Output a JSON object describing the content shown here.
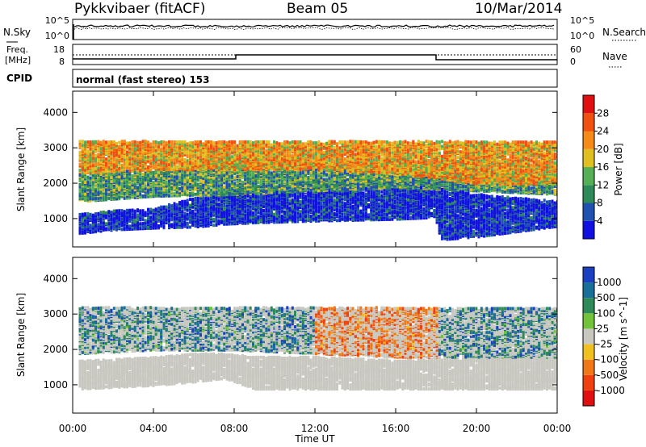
{
  "header": {
    "station": "Pykkvibaer (fitACF)",
    "beam": "Beam 05",
    "date": "10/Mar/2014"
  },
  "top_panels": {
    "nsky": {
      "label": "N.Sky",
      "ticks": [
        "10^5",
        "10^0"
      ]
    },
    "nsearch": {
      "label": "N.Search",
      "ticks": [
        "10^5",
        "10^0"
      ]
    },
    "freq": {
      "label_line1": "Freq.",
      "label_line2": "[MHz]",
      "ticks": [
        "18",
        "8"
      ]
    },
    "nave": {
      "label": "Nave",
      "ticks": [
        "60",
        "0"
      ]
    },
    "cpid": {
      "label": "CPID",
      "mode": "normal (fast stereo) 153"
    }
  },
  "chart_data": [
    {
      "type": "heatmap",
      "title": "",
      "panel": "power",
      "xlabel": "Time UT",
      "ylabel": "Slant Range [km]",
      "xlim": [
        0,
        24
      ],
      "ylim": [
        200,
        4600
      ],
      "y_ticks": [
        1000,
        2000,
        3000,
        4000
      ],
      "x_ticks": [
        "00:00",
        "04:00",
        "08:00",
        "12:00",
        "16:00",
        "20:00",
        "00:00"
      ],
      "colorbar": {
        "label": "Power [dB]",
        "ticks": [
          "4",
          "8",
          "12",
          "16",
          "20",
          "24",
          "28"
        ],
        "colors": [
          "#1010e0",
          "#2050b0",
          "#2e8b57",
          "#55b055",
          "#e0c020",
          "#f58a18",
          "#f05010",
          "#e01010"
        ]
      },
      "scatter_bands": [
        {
          "name": "low",
          "x": [
            0.3,
            2,
            4,
            6,
            7.5,
            9,
            12,
            16,
            17.9,
            18.2,
            20,
            22,
            24
          ],
          "lower": [
            600,
            700,
            750,
            780,
            860,
            900,
            950,
            1000,
            1050,
            420,
            500,
            650,
            800
          ],
          "upper": [
            1150,
            1250,
            1300,
            1600,
            1800,
            1900,
            2100,
            2200,
            2300,
            1900,
            1700,
            1600,
            1500
          ],
          "level": 0.92
        },
        {
          "name": "mid",
          "x": [
            0.3,
            4,
            8,
            12,
            16,
            20,
            24
          ],
          "lower": [
            1500,
            1650,
            1700,
            1800,
            1900,
            1800,
            1700
          ],
          "upper": [
            2300,
            2400,
            2700,
            2600,
            2600,
            2400,
            2200
          ],
          "level": 0.65
        },
        {
          "name": "high",
          "x": [
            0.3,
            4,
            8,
            12,
            16,
            20,
            24
          ],
          "lower": [
            2300,
            2400,
            2400,
            2400,
            2300,
            2000,
            2000
          ],
          "upper": [
            3200,
            3200,
            3200,
            3200,
            3200,
            3200,
            3200
          ],
          "level": 0.35
        }
      ]
    },
    {
      "type": "heatmap",
      "title": "",
      "panel": "velocity",
      "xlabel": "Time UT",
      "ylabel": "Slant Range [km]",
      "xlim": [
        0,
        24
      ],
      "ylim": [
        200,
        4600
      ],
      "y_ticks": [
        1000,
        2000,
        3000,
        4000
      ],
      "x_ticks": [
        "00:00",
        "04:00",
        "08:00",
        "12:00",
        "16:00",
        "20:00",
        "00:00"
      ],
      "colorbar": {
        "label": "Velocity [m s^-1]",
        "ticks": [
          "1000",
          "500",
          "100",
          "25",
          "-25",
          "-100",
          "-500",
          "-1000"
        ],
        "colors": [
          "#1a3fc0",
          "#1a6e9a",
          "#2e8b57",
          "#72c23a",
          "#c8c8c0",
          "#f0c020",
          "#f07818",
          "#f04010",
          "#e01010"
        ]
      },
      "scatter_bands": [
        {
          "name": "ground",
          "x": [
            0.3,
            4,
            6,
            7.5,
            9,
            12,
            16,
            20,
            24
          ],
          "lower": [
            900,
            1000,
            1100,
            1200,
            900,
            900,
            900,
            900,
            900
          ],
          "upper": [
            1700,
            1800,
            1900,
            1900,
            1800,
            1800,
            1700,
            1800,
            1800
          ],
          "level": 0.5
        },
        {
          "name": "upper",
          "x": [
            0.3,
            4,
            8,
            12,
            16,
            20,
            24
          ],
          "lower": [
            1900,
            2000,
            2000,
            1900,
            1800,
            1800,
            1800
          ],
          "upper": [
            3200,
            3200,
            3200,
            3200,
            3200,
            3200,
            3200
          ],
          "level": 0.5
        }
      ]
    }
  ]
}
